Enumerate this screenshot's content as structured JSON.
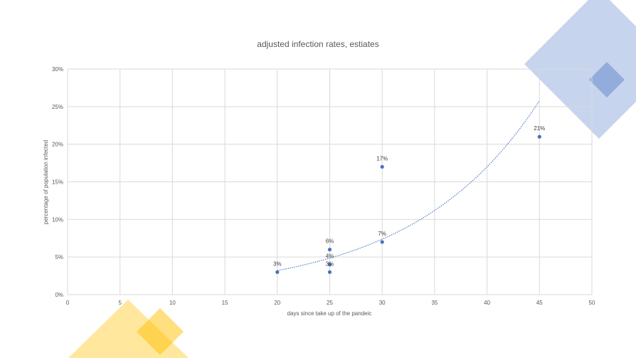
{
  "colors": {
    "deco_blue": "#4472C4",
    "deco_yellow": "#FFC000",
    "marker": "#4472C4",
    "trendline": "#4472C4",
    "grid": "#D9D9D9",
    "text": "#595959"
  },
  "chart_data": {
    "type": "scatter",
    "title": "adjusted infection rates, estiates",
    "xlabel": "days since take up of the pandeic",
    "ylabel": "percentage of population infected",
    "xlim": [
      0,
      50
    ],
    "ylim": [
      0,
      0.3
    ],
    "x_ticks": [
      0,
      5,
      10,
      15,
      20,
      25,
      30,
      35,
      40,
      45,
      50
    ],
    "y_ticks": [
      0,
      0.05,
      0.1,
      0.15,
      0.2,
      0.25,
      0.3
    ],
    "x_tick_labels": [
      "0",
      "5",
      "10",
      "15",
      "20",
      "25",
      "30",
      "35",
      "40",
      "45",
      "50"
    ],
    "y_tick_labels": [
      "0%",
      "5%",
      "10%",
      "15%",
      "20%",
      "25%",
      "30%"
    ],
    "grid": true,
    "legend": "none",
    "points": [
      {
        "x": 20,
        "y": 0.03,
        "label": "3%"
      },
      {
        "x": 25,
        "y": 0.06,
        "label": "6%"
      },
      {
        "x": 25,
        "y": 0.04,
        "label": "4%"
      },
      {
        "x": 25,
        "y": 0.03,
        "label": "3%"
      },
      {
        "x": 30,
        "y": 0.17,
        "label": "17%"
      },
      {
        "x": 30,
        "y": 0.07,
        "label": "7%"
      },
      {
        "x": 45,
        "y": 0.21,
        "label": "21%"
      }
    ],
    "trendline": {
      "type": "exponential",
      "style": "dotted",
      "x_range": [
        20,
        45
      ],
      "y_start": 0.032,
      "y_end": 0.258
    }
  }
}
